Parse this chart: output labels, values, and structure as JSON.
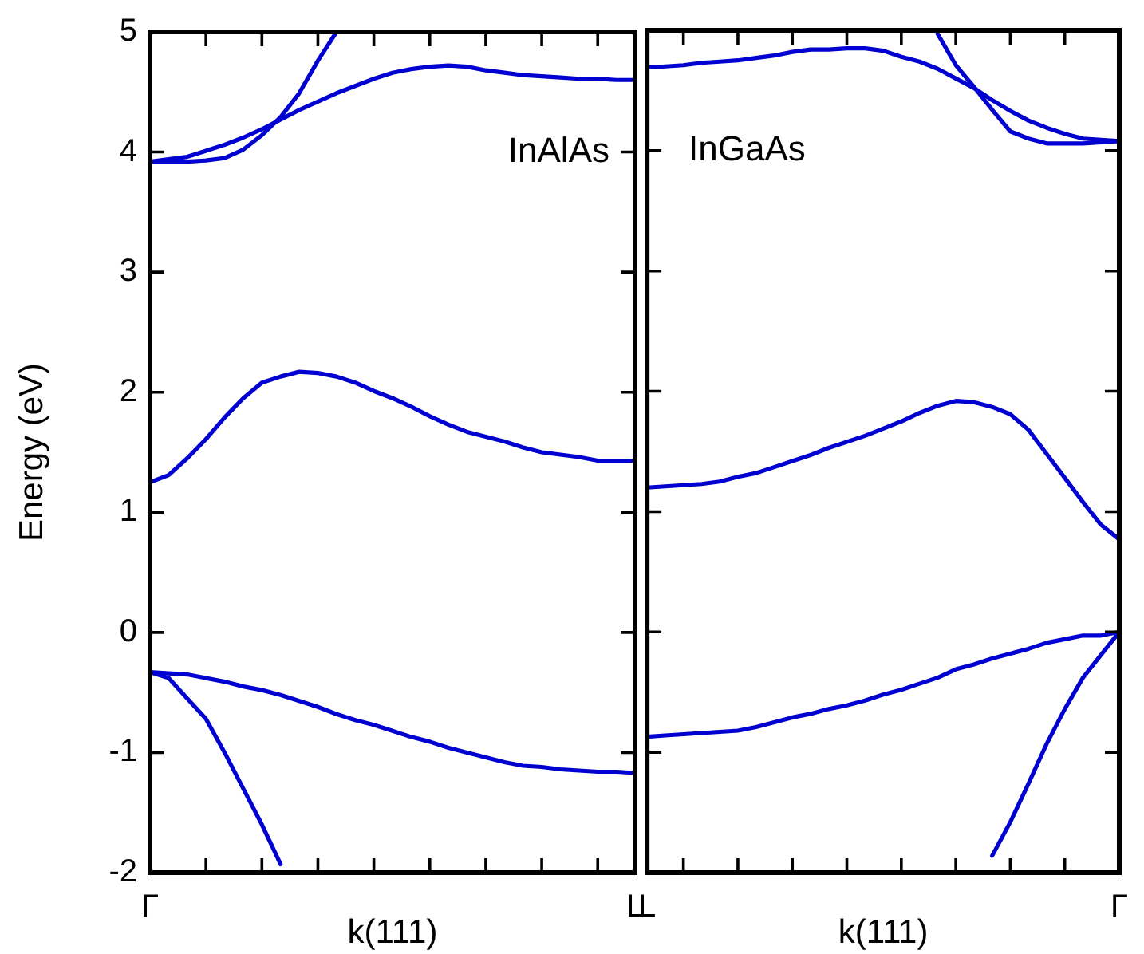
{
  "chart_data": [
    {
      "type": "line",
      "ylabel": "Energy (eV)",
      "xlabel": "k(111)",
      "annotations": [
        "InAlAs"
      ],
      "categories": [
        "Γ",
        null,
        null,
        null,
        null,
        null,
        null,
        null,
        null,
        null,
        null,
        null,
        null,
        null,
        null,
        null,
        null,
        null,
        null,
        null,
        null,
        null,
        null,
        null,
        null,
        null,
        "L"
      ],
      "ylim": [
        -2,
        5
      ],
      "yticks": [
        -2,
        -1,
        0,
        1,
        2,
        3,
        4,
        5
      ],
      "grid": false,
      "legend": false,
      "marker": "none",
      "line_style": "solid",
      "series": [
        {
          "color": "#0000d0",
          "values": [
            3.92,
            3.92,
            3.92,
            3.93,
            3.95,
            4.02,
            4.14,
            4.29,
            4.49,
            4.76,
            5.0,
            null,
            null,
            null,
            null,
            null,
            null,
            null,
            null,
            null,
            null,
            null,
            null,
            null,
            null,
            null,
            null
          ]
        },
        {
          "color": "#0000d0",
          "values": [
            3.92,
            3.94,
            3.96,
            4.01,
            4.06,
            4.12,
            4.19,
            4.27,
            4.35,
            4.42,
            4.49,
            4.55,
            4.61,
            4.66,
            4.69,
            4.71,
            4.72,
            4.71,
            4.68,
            4.66,
            4.64,
            4.63,
            4.62,
            4.61,
            4.61,
            4.6,
            4.6
          ]
        },
        {
          "color": "#0000d0",
          "values": [
            1.25,
            1.31,
            1.45,
            1.61,
            1.79,
            1.95,
            2.08,
            2.13,
            2.17,
            2.16,
            2.13,
            2.08,
            2.01,
            1.95,
            1.88,
            1.8,
            1.73,
            1.67,
            1.63,
            1.59,
            1.54,
            1.5,
            1.48,
            1.46,
            1.43,
            1.43,
            1.43
          ]
        },
        {
          "color": "#0000d0",
          "values": [
            -0.33,
            -0.34,
            -0.35,
            -0.38,
            -0.41,
            -0.45,
            -0.48,
            -0.52,
            -0.57,
            -0.62,
            -0.68,
            -0.73,
            -0.77,
            -0.82,
            -0.87,
            -0.91,
            -0.96,
            -1.0,
            -1.04,
            -1.08,
            -1.11,
            -1.12,
            -1.14,
            -1.15,
            -1.16,
            -1.16,
            -1.17
          ]
        },
        {
          "color": "#0000d0",
          "values": [
            -0.33,
            -0.38,
            -0.55,
            -0.72,
            -1.0,
            -1.3,
            -1.6,
            -1.93,
            null,
            null,
            null,
            null,
            null,
            null,
            null,
            null,
            null,
            null,
            null,
            null,
            null,
            null,
            null,
            null,
            null,
            null,
            null
          ]
        }
      ]
    },
    {
      "type": "line",
      "xlabel": "k(111)",
      "annotations": [
        "InGaAs"
      ],
      "categories": [
        "L",
        null,
        null,
        null,
        null,
        null,
        null,
        null,
        null,
        null,
        null,
        null,
        null,
        null,
        null,
        null,
        null,
        null,
        null,
        null,
        null,
        null,
        null,
        null,
        null,
        null,
        "Γ"
      ],
      "ylim": [
        -2,
        5
      ],
      "yticks": [
        -2,
        -1,
        0,
        1,
        2,
        3,
        4,
        5
      ],
      "tick_labels": "x",
      "grid": false,
      "legend": false,
      "marker": "none",
      "line_style": "solid",
      "series": [
        {
          "color": "#0000d0",
          "values": [
            4.69,
            4.7,
            4.71,
            4.73,
            4.74,
            4.75,
            4.77,
            4.79,
            4.82,
            4.84,
            4.84,
            4.85,
            4.85,
            4.83,
            4.78,
            4.74,
            4.68,
            4.6,
            4.52,
            4.42,
            4.33,
            4.25,
            4.19,
            4.14,
            4.1,
            4.09,
            4.08
          ]
        },
        {
          "color": "#0000d0",
          "values": [
            null,
            null,
            null,
            null,
            null,
            null,
            null,
            null,
            null,
            null,
            null,
            null,
            null,
            null,
            null,
            null,
            4.97,
            4.71,
            4.53,
            4.34,
            4.16,
            4.1,
            4.06,
            4.06,
            4.06,
            4.07,
            4.08
          ]
        },
        {
          "color": "#0000d0",
          "values": [
            1.2,
            1.21,
            1.22,
            1.23,
            1.25,
            1.29,
            1.32,
            1.37,
            1.42,
            1.47,
            1.53,
            1.58,
            1.63,
            1.69,
            1.75,
            1.82,
            1.88,
            1.92,
            1.91,
            1.87,
            1.81,
            1.68,
            1.48,
            1.28,
            1.08,
            0.89,
            0.77
          ]
        },
        {
          "color": "#0000d0",
          "values": [
            -0.87,
            -0.86,
            -0.85,
            -0.84,
            -0.83,
            -0.82,
            -0.79,
            -0.75,
            -0.71,
            -0.68,
            -0.64,
            -0.61,
            -0.57,
            -0.52,
            -0.48,
            -0.43,
            -0.38,
            -0.31,
            -0.27,
            -0.22,
            -0.18,
            -0.14,
            -0.09,
            -0.06,
            -0.03,
            -0.03,
            0
          ]
        },
        {
          "color": "#0000d0",
          "values": [
            null,
            null,
            null,
            null,
            null,
            null,
            null,
            null,
            null,
            null,
            null,
            null,
            null,
            null,
            null,
            null,
            null,
            null,
            null,
            -1.86,
            -1.58,
            -1.26,
            -0.93,
            -0.64,
            -0.38,
            -0.19,
            0
          ]
        }
      ]
    }
  ]
}
